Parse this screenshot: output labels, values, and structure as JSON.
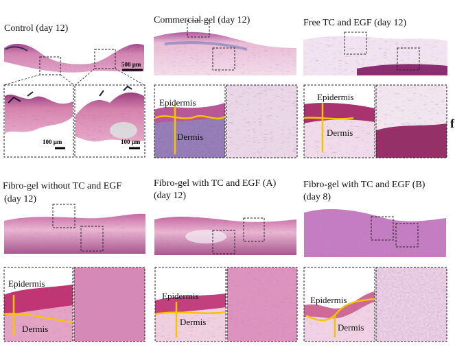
{
  "panels": [
    {
      "title_line1": "Control (day 12)",
      "title_line2": "",
      "scale_main": "500 μm",
      "scale_zoom": "100 μm"
    },
    {
      "title_line1": "Commercial gel (day 12)",
      "title_line2": ""
    },
    {
      "title_line1": "Free TC and EGF (day 12)",
      "title_line2": ""
    },
    {
      "title_line1": "Fibro-gel without TC and EGF",
      "title_line2": "(day 12)"
    },
    {
      "title_line1": "Fibro-gel with TC and EGF (A)",
      "title_line2": "(day 12)"
    },
    {
      "title_line1": "Fibro-gel with TC and EGF (B)",
      "title_line2": "(day 8)"
    }
  ],
  "labels": {
    "epidermis": "Epidermis",
    "dermis": "Dermis"
  },
  "edge_letter": "f",
  "colors": {
    "stain_pink": "#d98fb6",
    "stain_purple": "#7a3a8a",
    "annotation_yellow": "#f5c400"
  }
}
